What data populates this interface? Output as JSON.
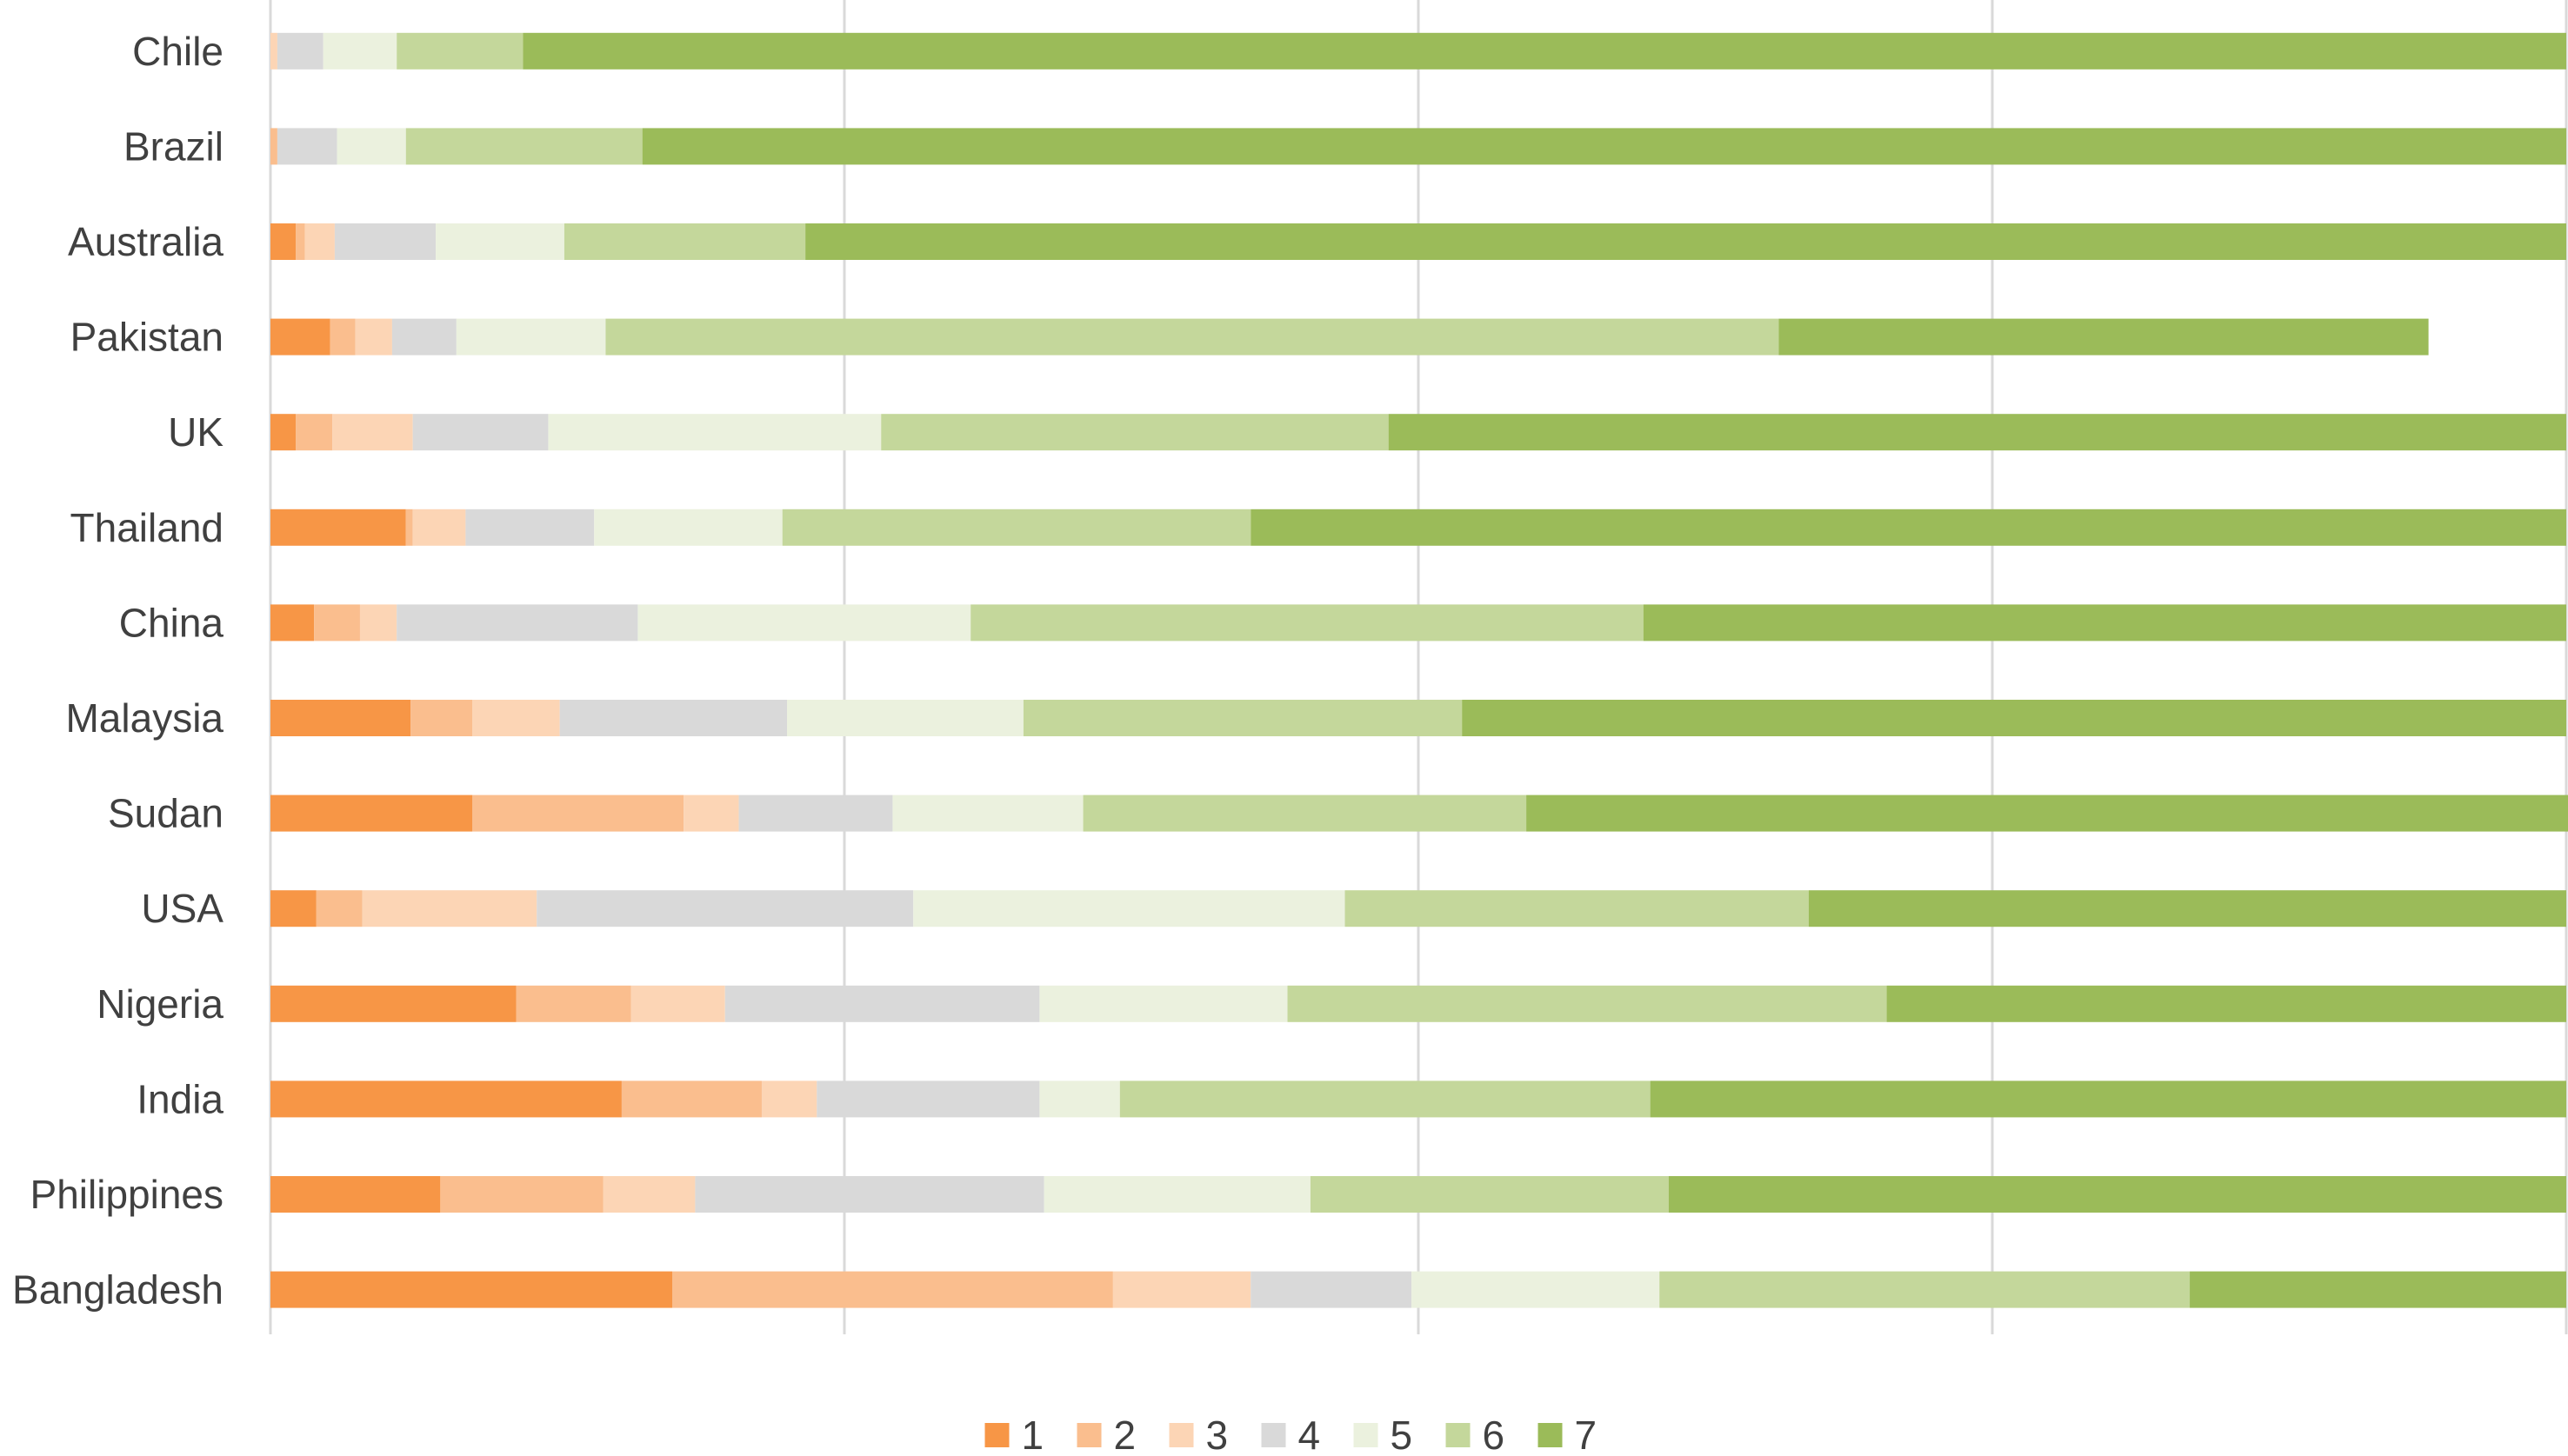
{
  "chart_data": {
    "type": "bar",
    "orientation": "horizontal",
    "stacking": "percent",
    "title": "",
    "xlabel": "",
    "ylabel": "",
    "xlim": [
      0,
      100
    ],
    "grid": "vertical",
    "legend": "bottom-center",
    "categories": [
      "Chile",
      "Brazil",
      "Australia",
      "Pakistan",
      "UK",
      "Thailand",
      "China",
      "Malaysia",
      "Sudan",
      "USA",
      "Nigeria",
      "India",
      "Philippines",
      "Bangladesh"
    ],
    "series": [
      {
        "name": "1",
        "color": "#F79646",
        "values": [
          0.0,
          0.0,
          1.1,
          2.6,
          1.1,
          5.9,
          1.9,
          6.1,
          8.8,
          2.0,
          10.7,
          15.3,
          7.4,
          17.5
        ]
      },
      {
        "name": "2",
        "color": "#FABE8E",
        "values": [
          0.0,
          0.3,
          0.4,
          1.1,
          1.6,
          0.3,
          2.0,
          2.7,
          9.2,
          2.0,
          5.0,
          6.1,
          7.1,
          19.2
        ]
      },
      {
        "name": "3",
        "color": "#FCD5B5",
        "values": [
          0.3,
          0.0,
          1.3,
          1.6,
          3.5,
          2.3,
          1.6,
          3.8,
          2.4,
          7.6,
          4.1,
          2.4,
          4.0,
          6.0
        ]
      },
      {
        "name": "4",
        "color": "#D9D9D9",
        "values": [
          2.0,
          2.6,
          4.4,
          2.8,
          5.9,
          5.6,
          10.5,
          9.9,
          6.7,
          16.4,
          13.7,
          9.7,
          15.2,
          7.0
        ]
      },
      {
        "name": "5",
        "color": "#EBF1DE",
        "values": [
          3.2,
          3.0,
          5.6,
          6.5,
          14.5,
          8.2,
          14.5,
          10.3,
          8.3,
          18.8,
          10.8,
          3.5,
          11.6,
          10.8
        ]
      },
      {
        "name": "6",
        "color": "#C4D79B",
        "values": [
          5.5,
          10.3,
          10.5,
          51.1,
          22.1,
          20.4,
          29.3,
          19.1,
          19.3,
          20.2,
          26.1,
          23.1,
          15.6,
          23.1
        ]
      },
      {
        "name": "7",
        "color": "#9BBB59",
        "values": [
          89.0,
          83.8,
          76.7,
          28.3,
          51.3,
          57.3,
          40.2,
          48.1,
          53.3,
          33.0,
          29.6,
          39.9,
          39.1,
          16.4
        ]
      }
    ]
  }
}
